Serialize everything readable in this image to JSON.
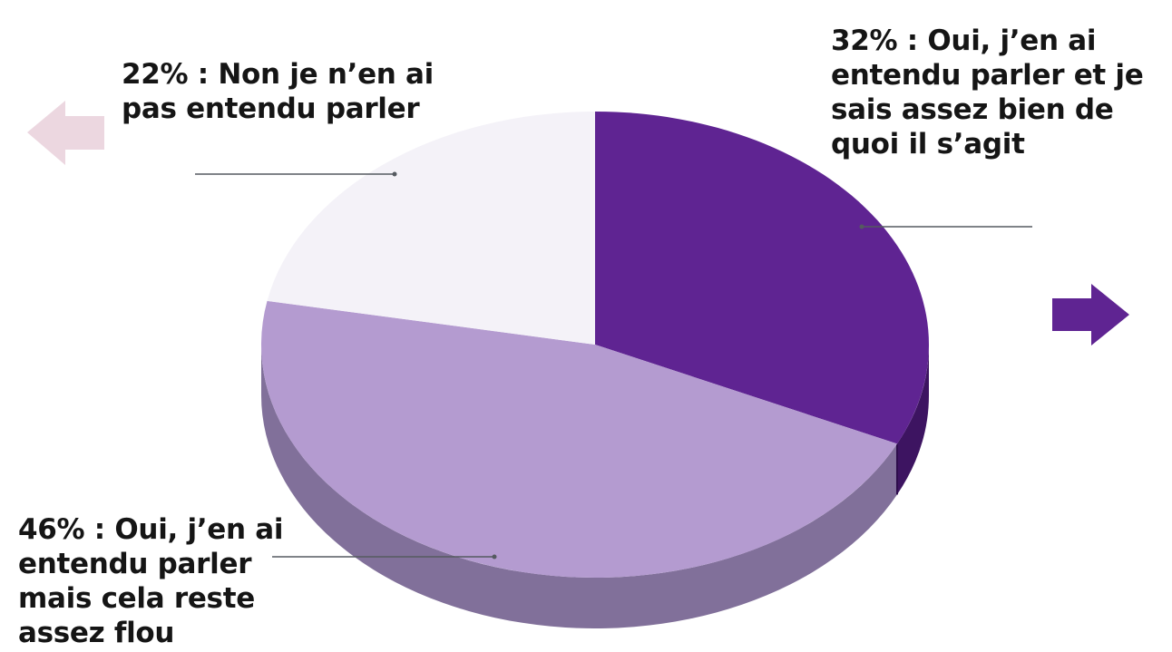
{
  "chart_data": {
    "type": "pie",
    "style": "3d-exploded-free",
    "slices": [
      {
        "label": "32% : Oui, j’en ai entendu parler et je sais assez bien de quoi il s’agit",
        "value": 32,
        "color": "#5f2492",
        "side_color": "#3d1461"
      },
      {
        "label": "46% : Oui, j’en ai entendu parler mais cela reste assez flou",
        "value": 46,
        "color": "#b49bd0",
        "side_color": "#81709a"
      },
      {
        "label": "22% : Non je n’en ai pas entendu parler",
        "value": 22,
        "color": "#f4f2f8",
        "side_color": "#d8d3e2"
      }
    ],
    "arrows": [
      {
        "direction": "left",
        "color": "#ecd7e0"
      },
      {
        "direction": "right",
        "color": "#5f2492"
      }
    ],
    "leader_line_color": "#555a60"
  }
}
